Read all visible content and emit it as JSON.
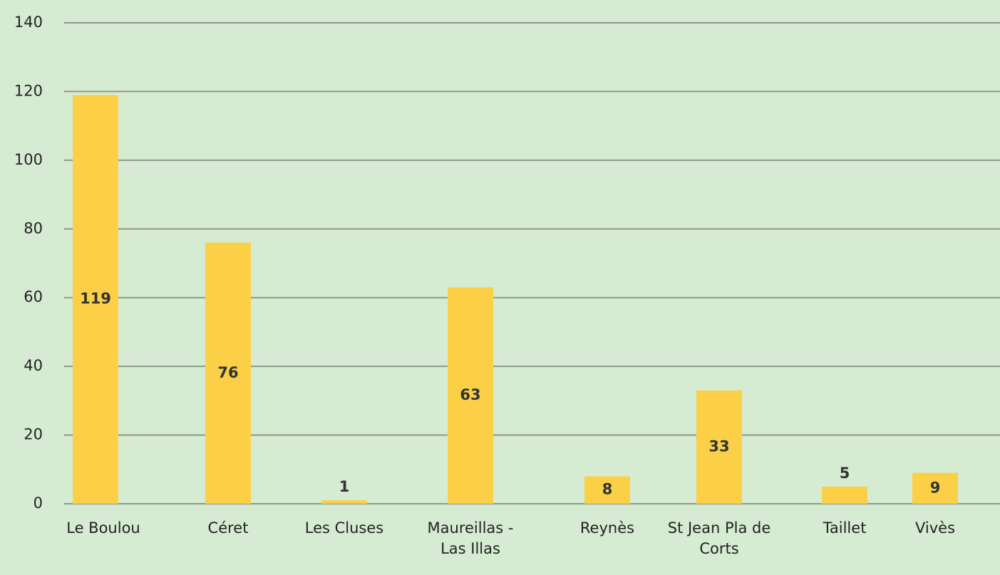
{
  "chart_data": {
    "type": "bar",
    "categories": [
      "Le Boulou",
      "Céret",
      "Les Cluses",
      "Maureillas - Las Illas",
      "Reynès",
      "St Jean Pla de Corts",
      "Taillet",
      "Vivès"
    ],
    "values": [
      119,
      76,
      1,
      63,
      8,
      33,
      5,
      9
    ],
    "color": "#fbd046",
    "ylim": [
      0,
      140
    ],
    "yticks": [
      0,
      20,
      40,
      60,
      80,
      100,
      120,
      140
    ],
    "grid": true
  }
}
